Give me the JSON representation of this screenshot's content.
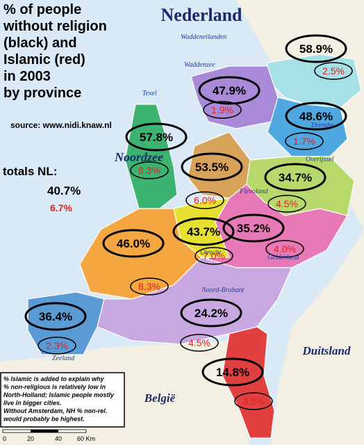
{
  "title_lines": [
    "% of people",
    "without religion",
    "(black) and",
    "Islamic (red)",
    "in 2003",
    "by province"
  ],
  "source": "source: www.nidi.knaw.nl",
  "labels": {
    "country": "Nederland",
    "sea": "Noordzee",
    "germany": "Duitsland",
    "belgium": "België",
    "wadden_islands": "Waddeneilanden",
    "wadden_sea": "Waddenzee",
    "texel": "Texel"
  },
  "totals": {
    "label": "totals NL:",
    "non_religious": "40.7%",
    "islamic": "6.7%"
  },
  "provinces": [
    {
      "non_religious": "58.9%",
      "islamic": "2.5%"
    },
    {
      "non_religious": "47.9%",
      "islamic": "1.9%"
    },
    {
      "non_religious": "48.6%",
      "islamic": "1.7%"
    },
    {
      "non_religious": "57.8%",
      "islamic": "8.3%"
    },
    {
      "non_religious": "53.5%",
      "islamic": "6.0%"
    },
    {
      "non_religious": "34.7%",
      "islamic": "4.5%"
    },
    {
      "non_religious": "35.2%",
      "islamic": "4.0%"
    },
    {
      "non_religious": "43.7%",
      "islamic": "7.0%"
    },
    {
      "non_religious": "46.0%",
      "islamic": "8.3%"
    },
    {
      "non_religious": "36.4%",
      "islamic": "2.3%"
    },
    {
      "non_religious": "24.2%",
      "islamic": "4.5%"
    },
    {
      "non_religious": "14.8%",
      "islamic": "3.5%"
    }
  ],
  "region_labels": [
    "Drenthe",
    "Overijssel",
    "Flevoland",
    "Gelderland",
    "Utrecht",
    "Noord-Brabant",
    "Zeeland"
  ],
  "note": [
    "% Islamic is added to explain why",
    "% non-religious is relatively low in",
    "North-Holland; Islamic people mostly",
    "live in bigger cities.",
    "Without Amsterdam, NH % non-rel.",
    "would probably be highest."
  ],
  "scale": [
    "0",
    "20",
    "40",
    "60 Km"
  ]
}
